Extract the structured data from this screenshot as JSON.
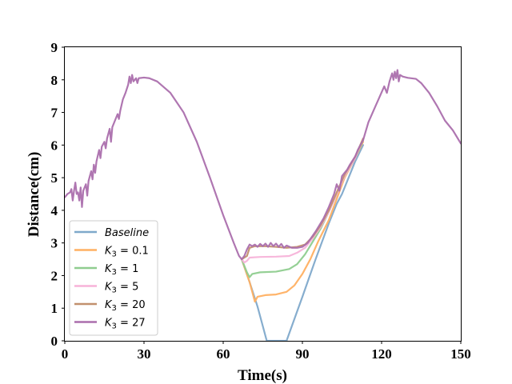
{
  "chart_data": {
    "type": "line",
    "xlabel": "Time(s)",
    "ylabel": "Distance(cm)",
    "xlim": [
      0,
      150
    ],
    "ylim": [
      0,
      9
    ],
    "xticks": [
      0,
      30,
      60,
      90,
      120,
      150
    ],
    "yticks": [
      0,
      1,
      2,
      3,
      4,
      5,
      6,
      7,
      8,
      9
    ],
    "grid": false,
    "legend_position": "lower-left",
    "series": [
      {
        "name": "Baseline",
        "name_sym": "",
        "name_val": "",
        "color": "#7fa9cb",
        "points": [
          [
            67,
            2.5
          ],
          [
            70,
            1.8
          ],
          [
            73,
            1.05
          ],
          [
            75,
            0.45
          ],
          [
            76.5,
            0
          ],
          [
            84,
            0
          ],
          [
            86,
            0.45
          ],
          [
            90,
            1.35
          ],
          [
            95,
            2.5
          ],
          [
            100,
            3.6
          ],
          [
            103,
            4.2
          ],
          [
            105,
            4.5
          ],
          [
            107,
            4.9
          ],
          [
            110,
            5.5
          ],
          [
            113,
            6.0
          ]
        ]
      },
      {
        "name": "",
        "name_sym": "K",
        "name_sub": "3",
        "name_val": " = 0.1",
        "color": "#ffb062",
        "points": [
          [
            67,
            2.5
          ],
          [
            70,
            1.8
          ],
          [
            72,
            1.2
          ],
          [
            73,
            1.35
          ],
          [
            76,
            1.4
          ],
          [
            80,
            1.42
          ],
          [
            84,
            1.5
          ],
          [
            87,
            1.7
          ],
          [
            90,
            2.05
          ],
          [
            93,
            2.5
          ],
          [
            96,
            3.05
          ],
          [
            100,
            3.7
          ],
          [
            103,
            4.35
          ],
          [
            106,
            5.0
          ],
          [
            110,
            5.6
          ],
          [
            113,
            6.1
          ]
        ]
      },
      {
        "name": "",
        "name_sym": "K",
        "name_sub": "3",
        "name_val": " = 1",
        "color": "#8fcd8f",
        "points": [
          [
            67,
            2.5
          ],
          [
            69,
            2.1
          ],
          [
            70,
            1.95
          ],
          [
            71,
            2.05
          ],
          [
            74,
            2.1
          ],
          [
            80,
            2.12
          ],
          [
            85,
            2.2
          ],
          [
            88,
            2.35
          ],
          [
            91,
            2.65
          ],
          [
            94,
            3.05
          ],
          [
            97,
            3.45
          ],
          [
            100,
            3.95
          ],
          [
            103,
            4.5
          ],
          [
            106,
            5.05
          ],
          [
            110,
            5.6
          ],
          [
            113,
            6.15
          ]
        ]
      },
      {
        "name": "",
        "name_sym": "K",
        "name_sub": "3",
        "name_val": " = 5",
        "color": "#f7b3d9",
        "points": [
          [
            67,
            2.5
          ],
          [
            68,
            2.4
          ],
          [
            69,
            2.45
          ],
          [
            70,
            2.55
          ],
          [
            74,
            2.57
          ],
          [
            80,
            2.58
          ],
          [
            85,
            2.6
          ],
          [
            88,
            2.7
          ],
          [
            91,
            2.85
          ],
          [
            94,
            3.15
          ],
          [
            97,
            3.5
          ],
          [
            100,
            3.95
          ],
          [
            103,
            4.5
          ],
          [
            106,
            5.05
          ],
          [
            110,
            5.6
          ],
          [
            113,
            6.2
          ]
        ]
      },
      {
        "name": "",
        "name_sym": "K",
        "name_sub": "3",
        "name_val": " = 20",
        "color": "#c2906e",
        "points": [
          [
            67,
            2.5
          ],
          [
            69,
            2.6
          ],
          [
            70,
            2.85
          ],
          [
            72,
            2.9
          ],
          [
            76,
            2.9
          ],
          [
            80,
            2.88
          ],
          [
            84,
            2.85
          ],
          [
            88,
            2.88
          ],
          [
            91,
            2.95
          ],
          [
            94,
            3.2
          ],
          [
            97,
            3.55
          ],
          [
            100,
            4.0
          ],
          [
            103,
            4.55
          ],
          [
            106,
            5.1
          ],
          [
            110,
            5.65
          ],
          [
            113,
            6.2
          ]
        ]
      },
      {
        "name": "",
        "name_sym": "K",
        "name_sub": "3",
        "name_val": " = 27",
        "color": "#ab6fad",
        "points": [
          [
            0,
            4.4
          ],
          [
            1,
            4.5
          ],
          [
            2,
            4.55
          ],
          [
            2.5,
            4.65
          ],
          [
            3,
            4.3
          ],
          [
            3.5,
            4.6
          ],
          [
            4,
            4.85
          ],
          [
            4.5,
            4.5
          ],
          [
            5,
            4.55
          ],
          [
            5.5,
            4.3
          ],
          [
            6,
            4.7
          ],
          [
            6.5,
            4.1
          ],
          [
            7,
            4.6
          ],
          [
            8,
            4.8
          ],
          [
            8.5,
            4.45
          ],
          [
            9,
            4.9
          ],
          [
            10,
            5.2
          ],
          [
            10.5,
            4.95
          ],
          [
            11,
            5.4
          ],
          [
            11.5,
            5.15
          ],
          [
            12,
            5.5
          ],
          [
            13,
            5.85
          ],
          [
            13.5,
            5.6
          ],
          [
            14,
            5.95
          ],
          [
            15,
            6.1
          ],
          [
            15.5,
            5.9
          ],
          [
            16,
            6.2
          ],
          [
            17,
            6.5
          ],
          [
            17.5,
            6.1
          ],
          [
            18,
            6.55
          ],
          [
            19,
            6.75
          ],
          [
            20,
            6.95
          ],
          [
            20.5,
            6.8
          ],
          [
            21,
            7.05
          ],
          [
            22,
            7.4
          ],
          [
            23,
            7.6
          ],
          [
            24,
            7.85
          ],
          [
            24.5,
            8.1
          ],
          [
            25,
            7.9
          ],
          [
            25.5,
            8.15
          ],
          [
            26,
            7.95
          ],
          [
            27,
            8.05
          ],
          [
            27.5,
            7.9
          ],
          [
            28,
            8.05
          ],
          [
            30,
            8.07
          ],
          [
            32,
            8.05
          ],
          [
            35,
            7.95
          ],
          [
            40,
            7.6
          ],
          [
            45,
            7.0
          ],
          [
            50,
            6.1
          ],
          [
            55,
            5.0
          ],
          [
            60,
            3.85
          ],
          [
            64,
            3.0
          ],
          [
            66,
            2.6
          ],
          [
            67,
            2.5
          ],
          [
            68,
            2.6
          ],
          [
            69,
            2.8
          ],
          [
            70,
            2.95
          ],
          [
            71,
            2.9
          ],
          [
            72,
            2.95
          ],
          [
            73,
            2.88
          ],
          [
            74,
            2.97
          ],
          [
            75,
            2.9
          ],
          [
            76,
            2.98
          ],
          [
            77,
            2.88
          ],
          [
            78,
            3.0
          ],
          [
            79,
            2.9
          ],
          [
            80,
            2.98
          ],
          [
            81,
            2.88
          ],
          [
            82,
            2.97
          ],
          [
            83,
            2.85
          ],
          [
            84,
            2.92
          ],
          [
            86,
            2.85
          ],
          [
            88,
            2.85
          ],
          [
            90,
            2.88
          ],
          [
            92,
            3.0
          ],
          [
            95,
            3.35
          ],
          [
            98,
            3.75
          ],
          [
            100,
            4.1
          ],
          [
            102,
            4.5
          ],
          [
            103,
            4.8
          ],
          [
            104,
            4.6
          ],
          [
            105,
            5.05
          ],
          [
            106,
            5.15
          ],
          [
            107,
            5.25
          ],
          [
            108,
            5.4
          ],
          [
            110,
            5.65
          ],
          [
            111,
            5.85
          ],
          [
            112,
            6.0
          ],
          [
            113,
            6.15
          ],
          [
            115,
            6.7
          ],
          [
            118,
            7.25
          ],
          [
            121,
            7.8
          ],
          [
            122,
            7.6
          ],
          [
            123,
            7.95
          ],
          [
            124,
            8.2
          ],
          [
            124.5,
            8.0
          ],
          [
            125,
            8.25
          ],
          [
            125.5,
            8.05
          ],
          [
            126,
            8.3
          ],
          [
            126.5,
            7.95
          ],
          [
            127,
            8.15
          ],
          [
            128,
            8.1
          ],
          [
            130,
            8.06
          ],
          [
            133,
            8.03
          ],
          [
            135,
            7.9
          ],
          [
            138,
            7.6
          ],
          [
            141,
            7.2
          ],
          [
            144,
            6.75
          ],
          [
            147,
            6.45
          ],
          [
            150,
            6.05
          ]
        ]
      }
    ]
  }
}
